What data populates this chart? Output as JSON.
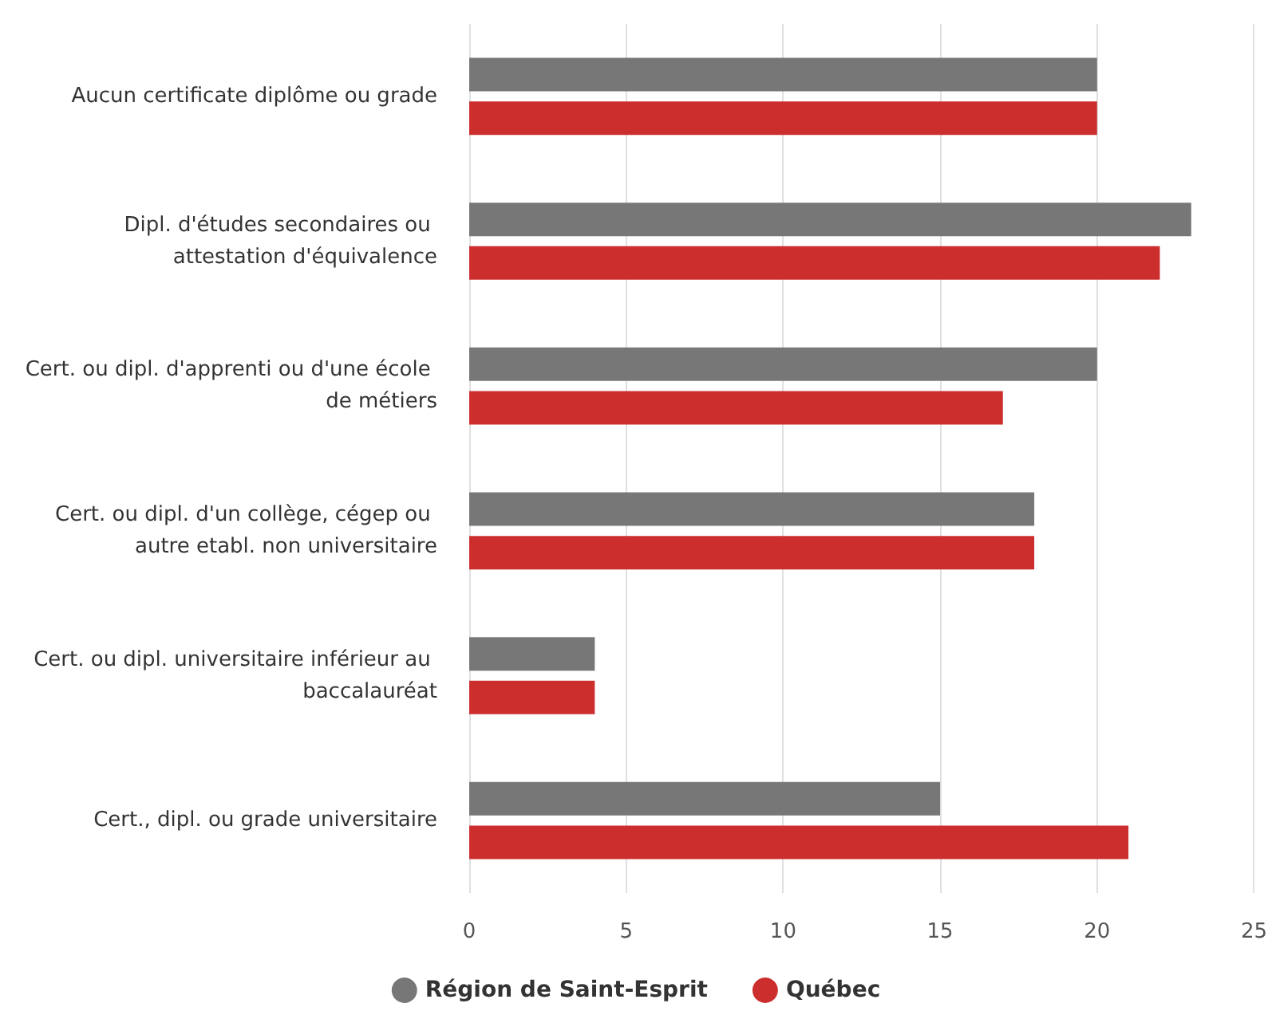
{
  "chart_data": {
    "type": "bar",
    "orientation": "horizontal",
    "categories": [
      "Aucun certificate diplôme ou grade",
      "Dipl. d'études secondaires ou attestation d'équivalence",
      "Cert. ou dipl. d'apprenti ou d'une école de métiers",
      "Cert. ou dipl. d'un collège, cégep ou autre etabl. non universitaire",
      "Cert. ou dipl. universitaire inférieur au baccalauréat",
      "Cert., dipl. ou grade universitaire"
    ],
    "series": [
      {
        "name": "Région de Saint-Esprit",
        "color": "#777777",
        "values": [
          20,
          23,
          20,
          18,
          4,
          15
        ]
      },
      {
        "name": "Québec",
        "color": "#cc2e2e",
        "values": [
          20,
          22,
          17,
          18,
          4,
          21
        ]
      }
    ],
    "xlim": [
      0,
      25
    ],
    "xticks": [
      0,
      5,
      10,
      15,
      20,
      25
    ],
    "grid": "x",
    "legend": "bottom"
  }
}
